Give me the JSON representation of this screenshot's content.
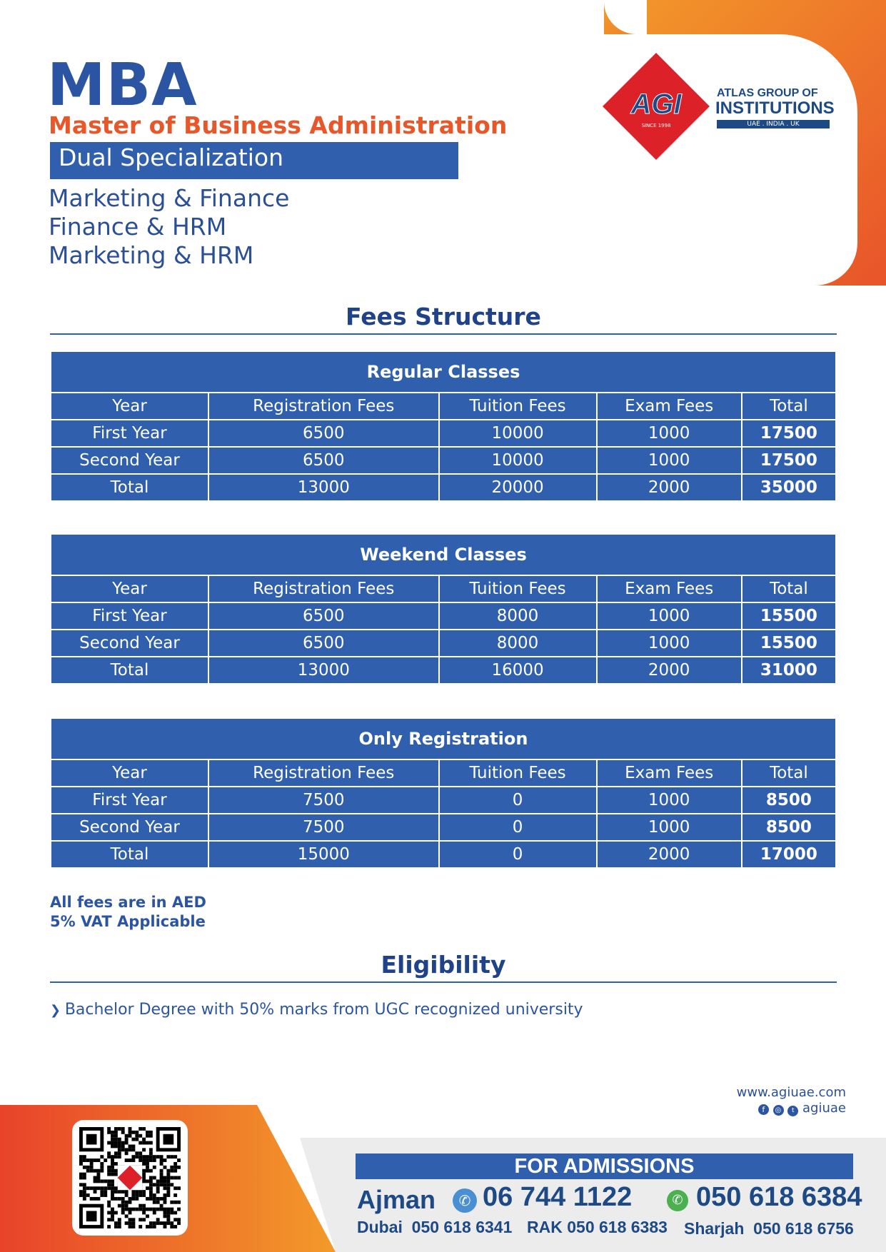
{
  "header": {
    "title": "MBA",
    "subtitle": "Master of Business Administration",
    "banner": "Dual Specialization",
    "specializations": [
      "Marketing & Finance",
      "Finance & HRM",
      "Marketing & HRM"
    ]
  },
  "logo": {
    "mark": "AGI",
    "since": "SINCE 1998",
    "line1": "ATLAS  GROUP OF",
    "line2": "INSTITUTIONS",
    "line3": "UAE . INDIA . UK"
  },
  "fees": {
    "heading": "Fees Structure",
    "columns": [
      "Year",
      "Registration Fees",
      "Tuition Fees",
      "Exam Fees",
      "Total"
    ],
    "tables": [
      {
        "title": "Regular Classes",
        "rows": [
          [
            "First Year",
            "6500",
            "10000",
            "1000",
            "17500"
          ],
          [
            "Second Year",
            "6500",
            "10000",
            "1000",
            "17500"
          ],
          [
            "Total",
            "13000",
            "20000",
            "2000",
            "35000"
          ]
        ]
      },
      {
        "title": "Weekend Classes",
        "rows": [
          [
            "First Year",
            "6500",
            "8000",
            "1000",
            "15500"
          ],
          [
            "Second Year",
            "6500",
            "8000",
            "1000",
            "15500"
          ],
          [
            "Total",
            "13000",
            "16000",
            "2000",
            "31000"
          ]
        ]
      },
      {
        "title": "Only Registration",
        "rows": [
          [
            "First Year",
            "7500",
            "0",
            "1000",
            "8500"
          ],
          [
            "Second Year",
            "7500",
            "0",
            "1000",
            "8500"
          ],
          [
            "Total",
            "15000",
            "0",
            "2000",
            "17000"
          ]
        ]
      }
    ],
    "notes": [
      "All fees are in AED",
      "5% VAT Applicable"
    ]
  },
  "eligibility": {
    "heading": "Eligibility",
    "items": [
      "Bachelor Degree with 50% marks from UGC recognized university"
    ]
  },
  "footer": {
    "website": "www.agiuae.com",
    "social_handle": "agiuae",
    "social_icons": [
      "facebook-icon",
      "instagram-icon",
      "twitter-icon"
    ],
    "admissions_label": "FOR ADMISSIONS",
    "main_city": "Ajman",
    "phone": "06 744 1122",
    "whatsapp": "050 618 6384",
    "branches": [
      {
        "city": "Dubai",
        "phone": "050 618 6341"
      },
      {
        "city": "RAK",
        "phone": "050 618 6383"
      },
      {
        "city": "Sharjah",
        "phone": "050 618 6756"
      }
    ]
  },
  "colors": {
    "primary": "#2f5fad",
    "accent": "#e8572a",
    "logo_red": "#dc2128"
  }
}
